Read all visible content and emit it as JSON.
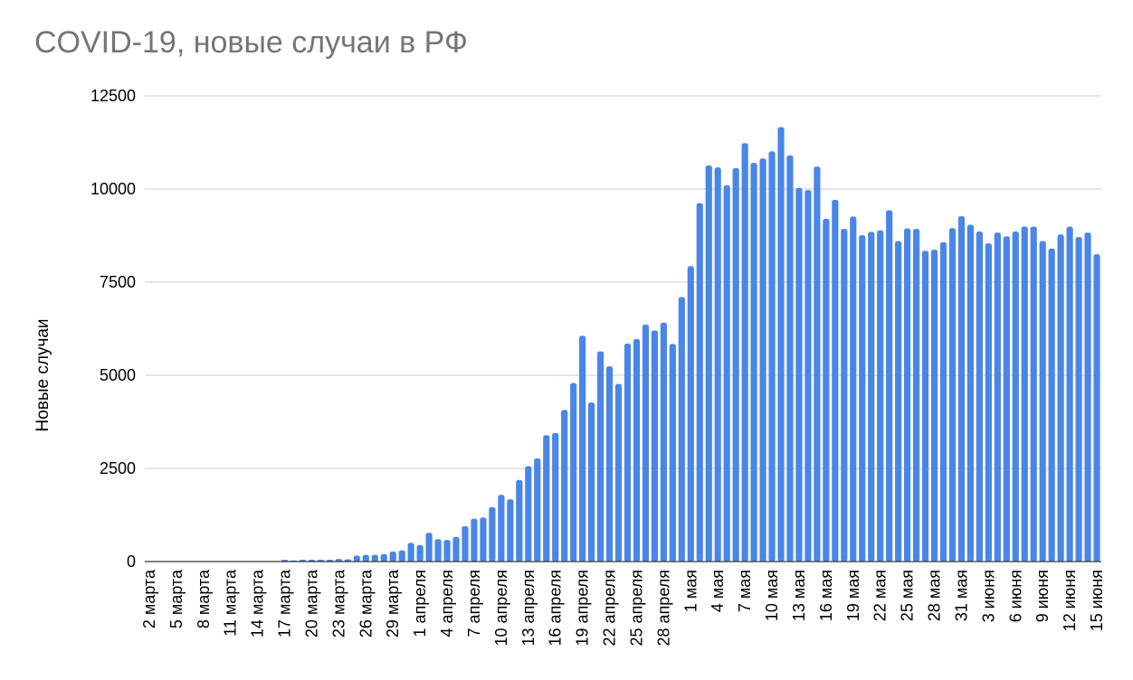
{
  "chart_data": {
    "type": "bar",
    "title": "COVID-19, новые случаи в РФ",
    "xlabel": "",
    "ylabel": "Новые случаи",
    "ylim": [
      0,
      12500
    ],
    "yticks": [
      0,
      2500,
      5000,
      7500,
      10000,
      12500
    ],
    "grid": true,
    "legend": "none",
    "bar_color": "#4a86e8",
    "start_date": "2020-03-02",
    "categories": [
      "2 марта",
      "3 марта",
      "4 марта",
      "5 марта",
      "6 марта",
      "7 марта",
      "8 марта",
      "9 марта",
      "10 марта",
      "11 марта",
      "12 марта",
      "13 марта",
      "14 марта",
      "15 марта",
      "16 марта",
      "17 марта",
      "18 марта",
      "19 марта",
      "20 марта",
      "21 марта",
      "22 марта",
      "23 марта",
      "24 марта",
      "25 марта",
      "26 марта",
      "27 марта",
      "28 марта",
      "29 марта",
      "30 марта",
      "31 марта",
      "1 апреля",
      "2 апреля",
      "3 апреля",
      "4 апреля",
      "5 апреля",
      "6 апреля",
      "7 апреля",
      "8 апреля",
      "9 апреля",
      "10 апреля",
      "11 апреля",
      "12 апреля",
      "13 апреля",
      "14 апреля",
      "15 апреля",
      "16 апреля",
      "17 апреля",
      "18 апреля",
      "19 апреля",
      "20 апреля",
      "21 апреля",
      "22 апреля",
      "23 апреля",
      "24 апреля",
      "25 апреля",
      "26 апреля",
      "27 апреля",
      "28 апреля",
      "29 апреля",
      "30 апреля",
      "1 мая",
      "2 мая",
      "3 мая",
      "4 мая",
      "5 мая",
      "6 мая",
      "7 мая",
      "8 мая",
      "9 мая",
      "10 мая",
      "11 мая",
      "12 мая",
      "13 мая",
      "14 мая",
      "15 мая",
      "16 мая",
      "17 мая",
      "18 мая",
      "19 мая",
      "20 мая",
      "21 мая",
      "22 мая",
      "23 мая",
      "24 мая",
      "25 мая",
      "26 мая",
      "27 мая",
      "28 мая",
      "29 мая",
      "30 мая",
      "31 мая",
      "1 июня",
      "2 июня",
      "3 июня",
      "4 июня",
      "5 июня",
      "6 июня",
      "7 июня",
      "8 июня",
      "9 июня",
      "10 июня",
      "11 июня",
      "12 июня",
      "13 июня",
      "14 июня",
      "15 июня"
    ],
    "tick_labels": [
      "2 марта",
      "5 марта",
      "8 марта",
      "11 марта",
      "14 марта",
      "17 марта",
      "20 марта",
      "23 марта",
      "26 марта",
      "29 марта",
      "1 апреля",
      "4 апреля",
      "7 апреля",
      "10 апреля",
      "13 апреля",
      "16 апреля",
      "19 апреля",
      "22 апреля",
      "25 апреля",
      "28 апреля",
      "1 мая",
      "4 мая",
      "7 мая",
      "10 мая",
      "13 мая",
      "16 мая",
      "19 мая",
      "22 мая",
      "25 мая",
      "28 мая",
      "31 мая",
      "3 июня",
      "6 июня",
      "9 июня",
      "12 июня",
      "15 июня"
    ],
    "values": [
      0,
      0,
      0,
      0,
      0,
      0,
      0,
      0,
      0,
      0,
      0,
      0,
      0,
      0,
      0,
      50,
      30,
      50,
      50,
      50,
      50,
      70,
      60,
      160,
      180,
      180,
      200,
      270,
      300,
      500,
      440,
      770,
      600,
      580,
      660,
      950,
      1150,
      1180,
      1460,
      1790,
      1670,
      2190,
      2560,
      2770,
      3390,
      3450,
      4070,
      4790,
      6060,
      4270,
      5640,
      5240,
      4770,
      5850,
      5970,
      6360,
      6200,
      6410,
      5840,
      7100,
      7930,
      9620,
      10630,
      10580,
      10100,
      10560,
      11230,
      10700,
      10820,
      11010,
      11660,
      10900,
      10030,
      9970,
      10600,
      9200,
      9710,
      8930,
      9260,
      8760,
      8850,
      8890,
      9430,
      8600,
      8940,
      8930,
      8340,
      8370,
      8570,
      8950,
      9270,
      9040,
      8860,
      8540,
      8830,
      8730,
      8860,
      8990,
      8990,
      8600,
      8400,
      8780,
      8990,
      8710,
      8830,
      8250
    ]
  }
}
